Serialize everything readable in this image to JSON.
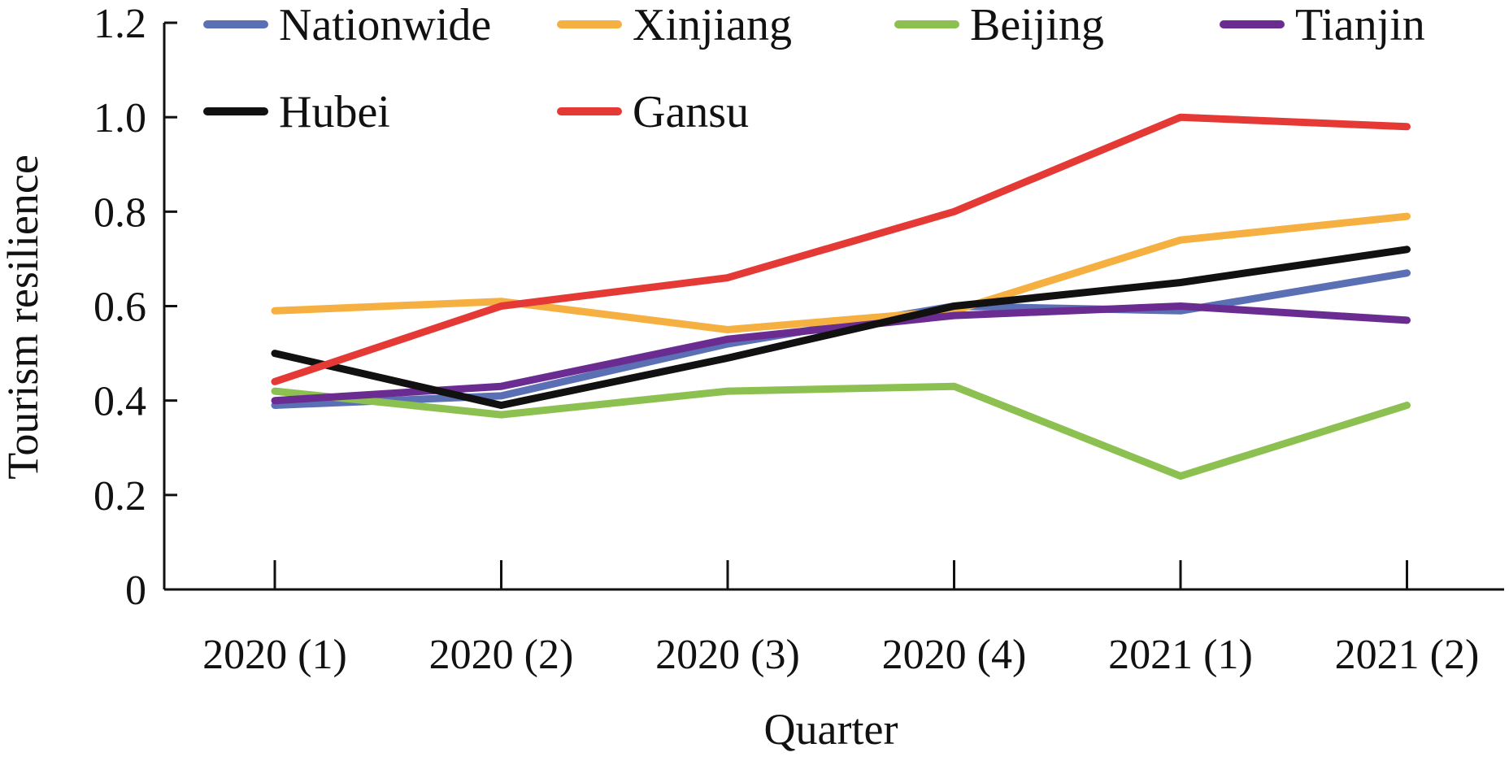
{
  "chart_data": {
    "type": "line",
    "title": "",
    "xlabel": "Quarter",
    "ylabel": "Tourism resilience",
    "categories": [
      "2020 (1)",
      "2020 (2)",
      "2020 (3)",
      "2020 (4)",
      "2021 (1)",
      "2021 (2)"
    ],
    "ylim": [
      0,
      1.2
    ],
    "yticks": [
      "0",
      "0.2",
      "0.4",
      "0.6",
      "0.8",
      "1.0",
      "1.2"
    ],
    "grid": false,
    "legend_position": "top",
    "series": [
      {
        "name": "Nationwide",
        "color": "#5b6fb5",
        "values": [
          0.39,
          0.41,
          0.52,
          0.6,
          0.59,
          0.67
        ]
      },
      {
        "name": "Xinjiang",
        "color": "#f5b041",
        "values": [
          0.59,
          0.61,
          0.55,
          0.59,
          0.74,
          0.79
        ]
      },
      {
        "name": "Beijing",
        "color": "#8cc152",
        "values": [
          0.42,
          0.37,
          0.42,
          0.43,
          0.24,
          0.39
        ]
      },
      {
        "name": "Tianjin",
        "color": "#6a2c91",
        "values": [
          0.4,
          0.43,
          0.53,
          0.58,
          0.6,
          0.57
        ]
      },
      {
        "name": "Hubei",
        "color": "#111111",
        "values": [
          0.5,
          0.39,
          0.49,
          0.6,
          0.65,
          0.72
        ]
      },
      {
        "name": "Gansu",
        "color": "#e53935",
        "values": [
          0.44,
          0.6,
          0.66,
          0.8,
          1.0,
          0.98
        ]
      }
    ]
  }
}
